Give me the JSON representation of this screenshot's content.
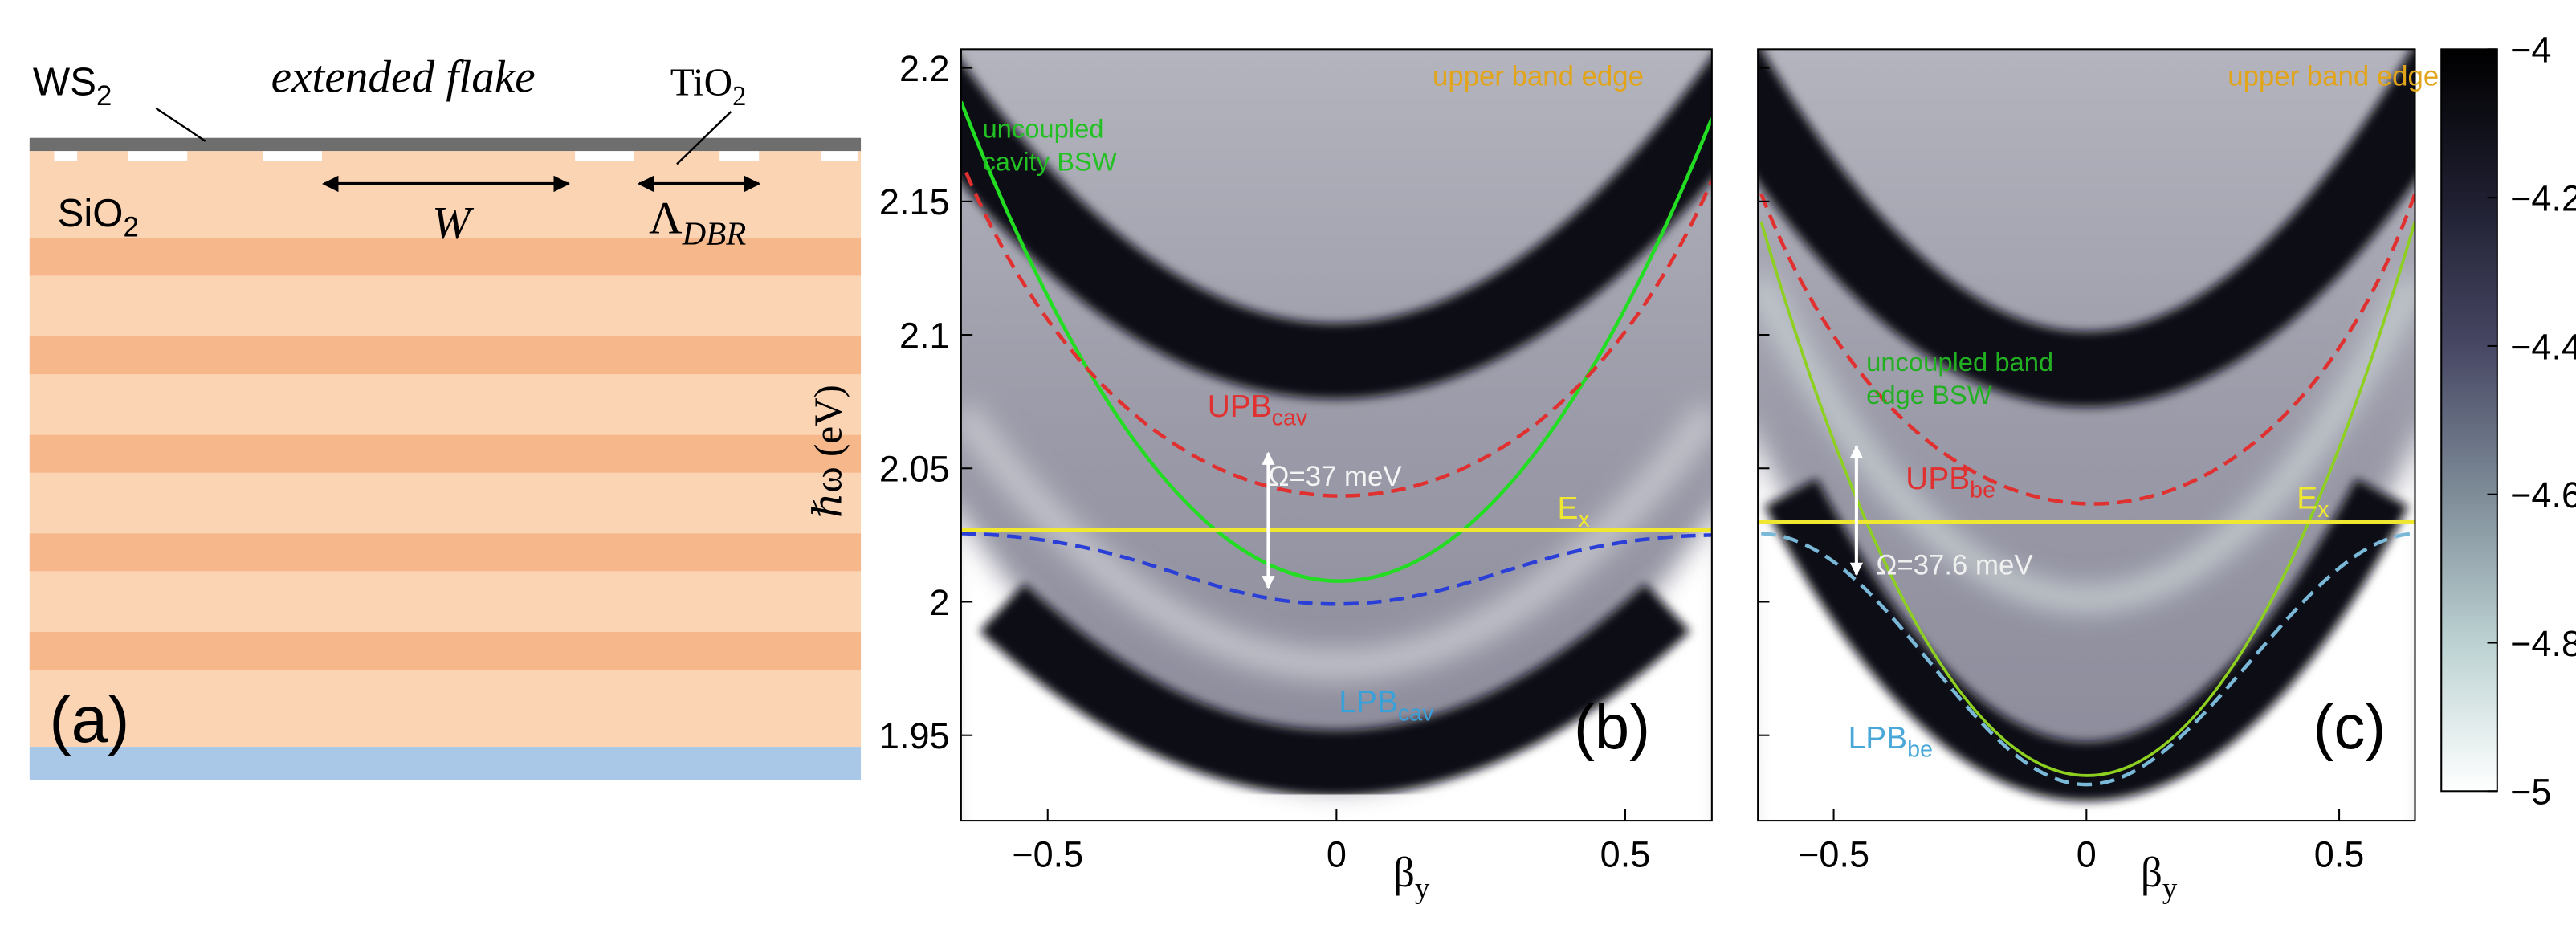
{
  "panel_a": {
    "ws2": {
      "main": "WS",
      "sub": "2"
    },
    "flake": "extended flake",
    "tio2": {
      "main": "TiO",
      "sub": "2"
    },
    "sio2": {
      "main": "SiO",
      "sub": "2"
    },
    "width": "W",
    "period": {
      "main": "Λ",
      "sub": "DBR"
    },
    "label": "(a)"
  },
  "panel_b": {
    "label": "(b)",
    "y_axis_label": "ℏω (eV)",
    "x_axis_label": {
      "main": "β",
      "sub": "y"
    },
    "ylim": [
      1.918,
      2.207
    ],
    "yticks": [
      1.95,
      2,
      2.05,
      2.1,
      2.15,
      2.2
    ],
    "xlim": [
      -0.65,
      0.65
    ],
    "xticks": [
      -0.5,
      0,
      0.5
    ],
    "annotations": {
      "upper": "upper band edge",
      "bsw": [
        "uncoupled",
        "cavity BSW"
      ],
      "upb": {
        "main": "UPB",
        "sub": "cav"
      },
      "rabi": "Ω=37 meV",
      "ex": {
        "main": "E",
        "sub": "x"
      },
      "lpb": {
        "main": "LPB",
        "sub": "cav"
      }
    }
  },
  "panel_c": {
    "label": "(c)",
    "x_axis_label": {
      "main": "β",
      "sub": "y"
    },
    "xlim": [
      -0.65,
      0.65
    ],
    "xticks": [
      -0.5,
      0,
      0.5
    ],
    "annotations": {
      "upper": "upper band edge",
      "bsw": [
        "uncoupled band",
        "edge BSW"
      ],
      "upb": {
        "main": "UPB",
        "sub": "be"
      },
      "rabi": "Ω=37.6 meV",
      "ex": {
        "main": "E",
        "sub": "x"
      },
      "lpb": {
        "main": "LPB",
        "sub": "be"
      }
    }
  },
  "colorbar": {
    "ylim": [
      -5,
      -4
    ],
    "ticks": [
      -4,
      -4.2,
      -4.4,
      -4.6,
      -4.8,
      -5
    ]
  }
}
